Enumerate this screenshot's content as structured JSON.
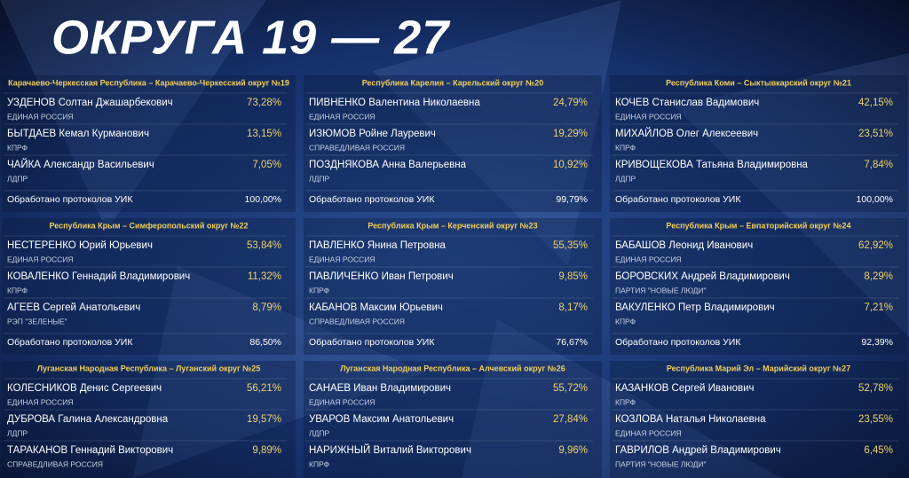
{
  "header": {
    "title": "ОКРУГА 19 — 27"
  },
  "districts": [
    {
      "title": "Карачаево-Черкесская Республика – Карачаево-Черкесский округ №19",
      "candidates": [
        {
          "name": "УЗДЕНОВ Солтан Джашарбекович",
          "party": "ЕДИНАЯ РОССИЯ",
          "percent": "73,28%"
        },
        {
          "name": "БЫТДАЕВ Кемал Курманович",
          "party": "КПРФ",
          "percent": "13,15%"
        },
        {
          "name": "ЧАЙКА Александр Васильевич",
          "party": "ЛДПР",
          "percent": "7,05%"
        }
      ],
      "protocols": {
        "label": "Обработано протоколов УИК",
        "value": "100,00%"
      }
    },
    {
      "title": "Республика Карелия – Карельский округ №20",
      "candidates": [
        {
          "name": "ПИВНЕНКО Валентина Николаевна",
          "party": "ЕДИНАЯ РОССИЯ",
          "percent": "24,79%"
        },
        {
          "name": "ИЗЮМОВ Ройне Лауревич",
          "party": "СПРАВЕДЛИВАЯ РОССИЯ",
          "percent": "19,29%"
        },
        {
          "name": "ПОЗДНЯКОВА Анна Валерьевна",
          "party": "ЛДПР",
          "percent": "10,92%"
        }
      ],
      "protocols": {
        "label": "Обработано протоколов УИК",
        "value": "99,79%"
      }
    },
    {
      "title": "Республика Коми – Сыктывкарский округ №21",
      "candidates": [
        {
          "name": "КОЧЕВ Станислав Вадимович",
          "party": "ЕДИНАЯ РОССИЯ",
          "percent": "42,15%"
        },
        {
          "name": "МИХАЙЛОВ Олег Алексеевич",
          "party": "КПРФ",
          "percent": "23,51%"
        },
        {
          "name": "КРИВОЩЕКОВА Татьяна Владимировна",
          "party": "ЛДПР",
          "percent": "7,84%"
        }
      ],
      "protocols": {
        "label": "Обработано протоколов УИК",
        "value": "100,00%"
      }
    },
    {
      "title": "Республика Крым – Симферопольский округ №22",
      "candidates": [
        {
          "name": "НЕСТЕРЕНКО Юрий Юрьевич",
          "party": "ЕДИНАЯ РОССИЯ",
          "percent": "53,84%"
        },
        {
          "name": "КОВАЛЕНКО Геннадий Владимирович",
          "party": "КПРФ",
          "percent": "11,32%"
        },
        {
          "name": "АГЕЕВ Сергей Анатольевич",
          "party": "РЭП \"ЗЕЛЕНЫЕ\"",
          "percent": "8,79%"
        }
      ],
      "protocols": {
        "label": "Обработано протоколов УИК",
        "value": "86,50%"
      }
    },
    {
      "title": "Республика Крым – Керченский округ №23",
      "candidates": [
        {
          "name": "ПАВЛЕНКО Янина Петровна",
          "party": "ЕДИНАЯ РОССИЯ",
          "percent": "55,35%"
        },
        {
          "name": "ПАВЛИЧЕНКО Иван Петрович",
          "party": "КПРФ",
          "percent": "9,85%"
        },
        {
          "name": "КАБАНОВ Максим Юрьевич",
          "party": "СПРАВЕДЛИВАЯ РОССИЯ",
          "percent": "8,17%"
        }
      ],
      "protocols": {
        "label": "Обработано протоколов УИК",
        "value": "76,67%"
      }
    },
    {
      "title": "Республика Крым – Евпаторийский округ №24",
      "candidates": [
        {
          "name": "БАБАШОВ Леонид Иванович",
          "party": "ЕДИНАЯ РОССИЯ",
          "percent": "62,92%"
        },
        {
          "name": "БОРОВСКИХ Андрей Владимирович",
          "party": "ПАРТИЯ \"НОВЫЕ ЛЮДИ\"",
          "percent": "8,29%"
        },
        {
          "name": "ВАКУЛЕНКО Петр Владимирович",
          "party": "КПРФ",
          "percent": "7,21%"
        }
      ],
      "protocols": {
        "label": "Обработано протоколов УИК",
        "value": "92,39%"
      }
    },
    {
      "title": "Луганская Народная Республика – Луганский округ №25",
      "candidates": [
        {
          "name": "КОЛЕСНИКОВ Денис Сергеевич",
          "party": "ЕДИНАЯ РОССИЯ",
          "percent": "56,21%"
        },
        {
          "name": "ДУБРОВА Галина Александровна",
          "party": "ЛДПР",
          "percent": "19,57%"
        },
        {
          "name": "ТАРАКАНОВ Геннадий Викторович",
          "party": "СПРАВЕДЛИВАЯ РОССИЯ",
          "percent": "9,89%"
        }
      ]
    },
    {
      "title": "Луганская Народная Республика – Алчевский округ №26",
      "candidates": [
        {
          "name": "САНАЕВ Иван Владимирович",
          "party": "ЕДИНАЯ РОССИЯ",
          "percent": "55,72%"
        },
        {
          "name": "УВАРОВ Максим Анатольевич",
          "party": "ЛДПР",
          "percent": "27,84%"
        },
        {
          "name": "НАРИЖНЫЙ Виталий Викторович",
          "party": "КПРФ",
          "percent": "9,96%"
        }
      ]
    },
    {
      "title": "Республика Марий Эл – Марийский округ №27",
      "candidates": [
        {
          "name": "КАЗАНКОВ Сергей Иванович",
          "party": "КПРФ",
          "percent": "52,78%"
        },
        {
          "name": "КОЗЛОВА Наталья Николаевна",
          "party": "ЕДИНАЯ РОССИЯ",
          "percent": "23,55%"
        },
        {
          "name": "ГАВРИЛОВ Андрей Владимирович",
          "party": "ПАРТИЯ \"НОВЫЕ ЛЮДИ\"",
          "percent": "6,45%"
        }
      ]
    }
  ]
}
